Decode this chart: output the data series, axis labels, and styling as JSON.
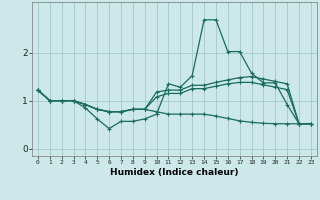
{
  "xlabel": "Humidex (Indice chaleur)",
  "bg_color": "#cce8e8",
  "grid_color": "#aacccc",
  "line_color": "#1a6b60",
  "x_values": [
    0,
    1,
    2,
    3,
    4,
    5,
    6,
    7,
    8,
    9,
    10,
    11,
    12,
    13,
    14,
    15,
    16,
    17,
    18,
    19,
    20,
    21,
    22,
    23
  ],
  "line1": [
    1.22,
    1.0,
    1.0,
    1.0,
    0.85,
    0.62,
    0.42,
    0.57,
    0.57,
    0.62,
    0.72,
    1.35,
    1.28,
    1.52,
    2.68,
    2.68,
    2.02,
    2.02,
    1.57,
    1.37,
    1.37,
    0.92,
    0.52,
    0.52
  ],
  "line2": [
    1.22,
    1.0,
    1.0,
    1.0,
    0.92,
    0.82,
    0.77,
    0.77,
    0.82,
    0.82,
    1.18,
    1.22,
    1.22,
    1.32,
    1.32,
    1.38,
    1.43,
    1.48,
    1.5,
    1.45,
    1.4,
    1.35,
    0.52,
    0.52
  ],
  "line3": [
    1.22,
    1.0,
    1.0,
    1.0,
    0.92,
    0.82,
    0.77,
    0.77,
    0.82,
    0.82,
    1.08,
    1.15,
    1.15,
    1.25,
    1.25,
    1.3,
    1.35,
    1.38,
    1.38,
    1.33,
    1.28,
    1.23,
    0.52,
    0.52
  ],
  "line4": [
    1.22,
    1.0,
    1.0,
    1.0,
    0.92,
    0.82,
    0.77,
    0.77,
    0.82,
    0.82,
    0.77,
    0.72,
    0.72,
    0.72,
    0.72,
    0.68,
    0.63,
    0.58,
    0.55,
    0.53,
    0.52,
    0.52,
    0.52,
    0.52
  ],
  "ylim": [
    -0.15,
    3.05
  ],
  "xlim": [
    -0.5,
    23.5
  ],
  "yticks": [
    0,
    1,
    2
  ],
  "xticks": [
    0,
    1,
    2,
    3,
    4,
    5,
    6,
    7,
    8,
    9,
    10,
    11,
    12,
    13,
    14,
    15,
    16,
    17,
    18,
    19,
    20,
    21,
    22,
    23
  ]
}
